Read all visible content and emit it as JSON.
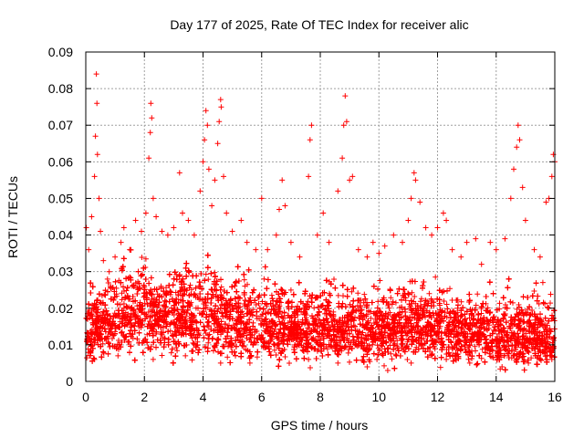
{
  "chart_data": {
    "type": "scatter",
    "title": "Day 177 of 2025, Rate Of TEC Index for receiver alic",
    "xlabel": "GPS time / hours",
    "ylabel": "ROTI / TECUs",
    "xlim": [
      0,
      16
    ],
    "ylim": [
      0,
      0.09
    ],
    "x_ticks": [
      "0",
      "2",
      "4",
      "6",
      "8",
      "10",
      "12",
      "14",
      "16"
    ],
    "y_ticks": [
      "0",
      "0.01",
      "0.02",
      "0.03",
      "0.04",
      "0.05",
      "0.06",
      "0.07",
      "0.08",
      "0.09"
    ],
    "grid": true,
    "marker": "+",
    "series": [
      {
        "name": "ROTI",
        "color": "#ff0000",
        "points": [
          [
            0.02,
            0.042
          ],
          [
            0.1,
            0.036
          ],
          [
            0.2,
            0.045
          ],
          [
            0.3,
            0.056
          ],
          [
            0.33,
            0.067
          ],
          [
            0.36,
            0.084
          ],
          [
            0.38,
            0.076
          ],
          [
            0.4,
            0.062
          ],
          [
            0.45,
            0.05
          ],
          [
            0.5,
            0.041
          ],
          [
            0.6,
            0.033
          ],
          [
            0.8,
            0.03
          ],
          [
            1.0,
            0.034
          ],
          [
            1.2,
            0.038
          ],
          [
            1.3,
            0.042
          ],
          [
            1.5,
            0.036
          ],
          [
            1.7,
            0.044
          ],
          [
            1.9,
            0.041
          ],
          [
            2.05,
            0.046
          ],
          [
            2.15,
            0.061
          ],
          [
            2.2,
            0.068
          ],
          [
            2.22,
            0.076
          ],
          [
            2.25,
            0.072
          ],
          [
            2.3,
            0.05
          ],
          [
            2.4,
            0.045
          ],
          [
            2.6,
            0.041
          ],
          [
            2.8,
            0.04
          ],
          [
            3.0,
            0.042
          ],
          [
            3.2,
            0.057
          ],
          [
            3.3,
            0.046
          ],
          [
            3.5,
            0.044
          ],
          [
            3.7,
            0.04
          ],
          [
            3.9,
            0.052
          ],
          [
            4.0,
            0.06
          ],
          [
            4.05,
            0.066
          ],
          [
            4.1,
            0.074
          ],
          [
            4.15,
            0.07
          ],
          [
            4.2,
            0.058
          ],
          [
            4.3,
            0.048
          ],
          [
            4.4,
            0.055
          ],
          [
            4.5,
            0.065
          ],
          [
            4.55,
            0.071
          ],
          [
            4.6,
            0.077
          ],
          [
            4.62,
            0.075
          ],
          [
            4.7,
            0.056
          ],
          [
            4.8,
            0.046
          ],
          [
            5.0,
            0.041
          ],
          [
            5.3,
            0.044
          ],
          [
            5.5,
            0.038
          ],
          [
            5.8,
            0.036
          ],
          [
            6.0,
            0.05
          ],
          [
            6.2,
            0.036
          ],
          [
            6.5,
            0.04
          ],
          [
            6.6,
            0.047
          ],
          [
            6.7,
            0.055
          ],
          [
            6.8,
            0.048
          ],
          [
            7.0,
            0.038
          ],
          [
            7.3,
            0.034
          ],
          [
            7.6,
            0.056
          ],
          [
            7.65,
            0.066
          ],
          [
            7.7,
            0.07
          ],
          [
            7.9,
            0.04
          ],
          [
            8.1,
            0.046
          ],
          [
            8.3,
            0.038
          ],
          [
            8.6,
            0.052
          ],
          [
            8.75,
            0.061
          ],
          [
            8.8,
            0.07
          ],
          [
            8.85,
            0.078
          ],
          [
            8.9,
            0.071
          ],
          [
            9.0,
            0.055
          ],
          [
            9.1,
            0.056
          ],
          [
            9.3,
            0.036
          ],
          [
            9.6,
            0.034
          ],
          [
            9.8,
            0.038
          ],
          [
            10.0,
            0.035
          ],
          [
            10.2,
            0.037
          ],
          [
            10.5,
            0.04
          ],
          [
            10.8,
            0.038
          ],
          [
            11.0,
            0.044
          ],
          [
            11.1,
            0.05
          ],
          [
            11.2,
            0.057
          ],
          [
            11.25,
            0.055
          ],
          [
            11.4,
            0.049
          ],
          [
            11.6,
            0.042
          ],
          [
            11.8,
            0.04
          ],
          [
            12.0,
            0.042
          ],
          [
            12.2,
            0.046
          ],
          [
            12.3,
            0.044
          ],
          [
            12.5,
            0.036
          ],
          [
            12.8,
            0.034
          ],
          [
            13.0,
            0.038
          ],
          [
            13.3,
            0.039
          ],
          [
            13.5,
            0.032
          ],
          [
            13.8,
            0.038
          ],
          [
            14.0,
            0.036
          ],
          [
            14.3,
            0.039
          ],
          [
            14.5,
            0.05
          ],
          [
            14.6,
            0.058
          ],
          [
            14.7,
            0.064
          ],
          [
            14.75,
            0.07
          ],
          [
            14.8,
            0.066
          ],
          [
            14.9,
            0.053
          ],
          [
            15.0,
            0.044
          ],
          [
            15.3,
            0.036
          ],
          [
            15.5,
            0.034
          ],
          [
            15.7,
            0.049
          ],
          [
            15.8,
            0.05
          ],
          [
            15.9,
            0.056
          ],
          [
            15.95,
            0.062
          ],
          [
            16.0,
            0.06
          ],
          [
            0.1,
            0.012
          ],
          [
            0.5,
            0.018
          ],
          [
            0.9,
            0.015
          ],
          [
            1.3,
            0.02
          ],
          [
            1.7,
            0.017
          ],
          [
            2.1,
            0.021
          ],
          [
            2.5,
            0.019
          ],
          [
            2.9,
            0.016
          ],
          [
            3.3,
            0.022
          ],
          [
            3.7,
            0.018
          ],
          [
            4.1,
            0.02
          ],
          [
            4.5,
            0.023
          ],
          [
            4.9,
            0.017
          ],
          [
            5.3,
            0.016
          ],
          [
            5.7,
            0.015
          ],
          [
            6.1,
            0.017
          ],
          [
            6.5,
            0.018
          ],
          [
            6.9,
            0.016
          ],
          [
            7.3,
            0.015
          ],
          [
            7.7,
            0.014
          ],
          [
            8.1,
            0.015
          ],
          [
            8.5,
            0.014
          ],
          [
            8.9,
            0.016
          ],
          [
            9.3,
            0.013
          ],
          [
            9.7,
            0.014
          ],
          [
            10.1,
            0.015
          ],
          [
            10.5,
            0.017
          ],
          [
            10.9,
            0.016
          ],
          [
            11.3,
            0.018
          ],
          [
            11.7,
            0.016
          ],
          [
            12.1,
            0.015
          ],
          [
            12.5,
            0.014
          ],
          [
            12.9,
            0.013
          ],
          [
            13.3,
            0.015
          ],
          [
            13.7,
            0.014
          ],
          [
            14.1,
            0.013
          ],
          [
            14.5,
            0.012
          ],
          [
            14.9,
            0.014
          ],
          [
            15.3,
            0.013
          ],
          [
            15.7,
            0.012
          ],
          [
            0.3,
            0.006
          ],
          [
            1.1,
            0.007
          ],
          [
            2.3,
            0.006
          ],
          [
            3.4,
            0.007
          ],
          [
            4.6,
            0.005
          ],
          [
            5.6,
            0.005
          ],
          [
            6.6,
            0.006
          ],
          [
            7.6,
            0.006
          ],
          [
            8.6,
            0.005
          ],
          [
            9.6,
            0.004
          ],
          [
            10.3,
            0.003
          ],
          [
            11.1,
            0.005
          ],
          [
            12.3,
            0.006
          ],
          [
            13.1,
            0.005
          ],
          [
            14.2,
            0.004
          ],
          [
            15.1,
            0.005
          ],
          [
            15.9,
            0.006
          ]
        ],
        "density_profile": {
          "hours": [
            0,
            1,
            2,
            3,
            4,
            5,
            6,
            7,
            8,
            9,
            10,
            11,
            12,
            13,
            14,
            15,
            16
          ],
          "central_value": [
            0.014,
            0.017,
            0.019,
            0.017,
            0.019,
            0.016,
            0.015,
            0.015,
            0.014,
            0.014,
            0.014,
            0.016,
            0.015,
            0.013,
            0.013,
            0.012,
            0.012
          ],
          "spread": [
            0.006,
            0.007,
            0.008,
            0.007,
            0.008,
            0.007,
            0.007,
            0.006,
            0.006,
            0.006,
            0.006,
            0.007,
            0.007,
            0.006,
            0.006,
            0.006,
            0.006
          ],
          "samples_per_hour": 620
        }
      }
    ]
  }
}
